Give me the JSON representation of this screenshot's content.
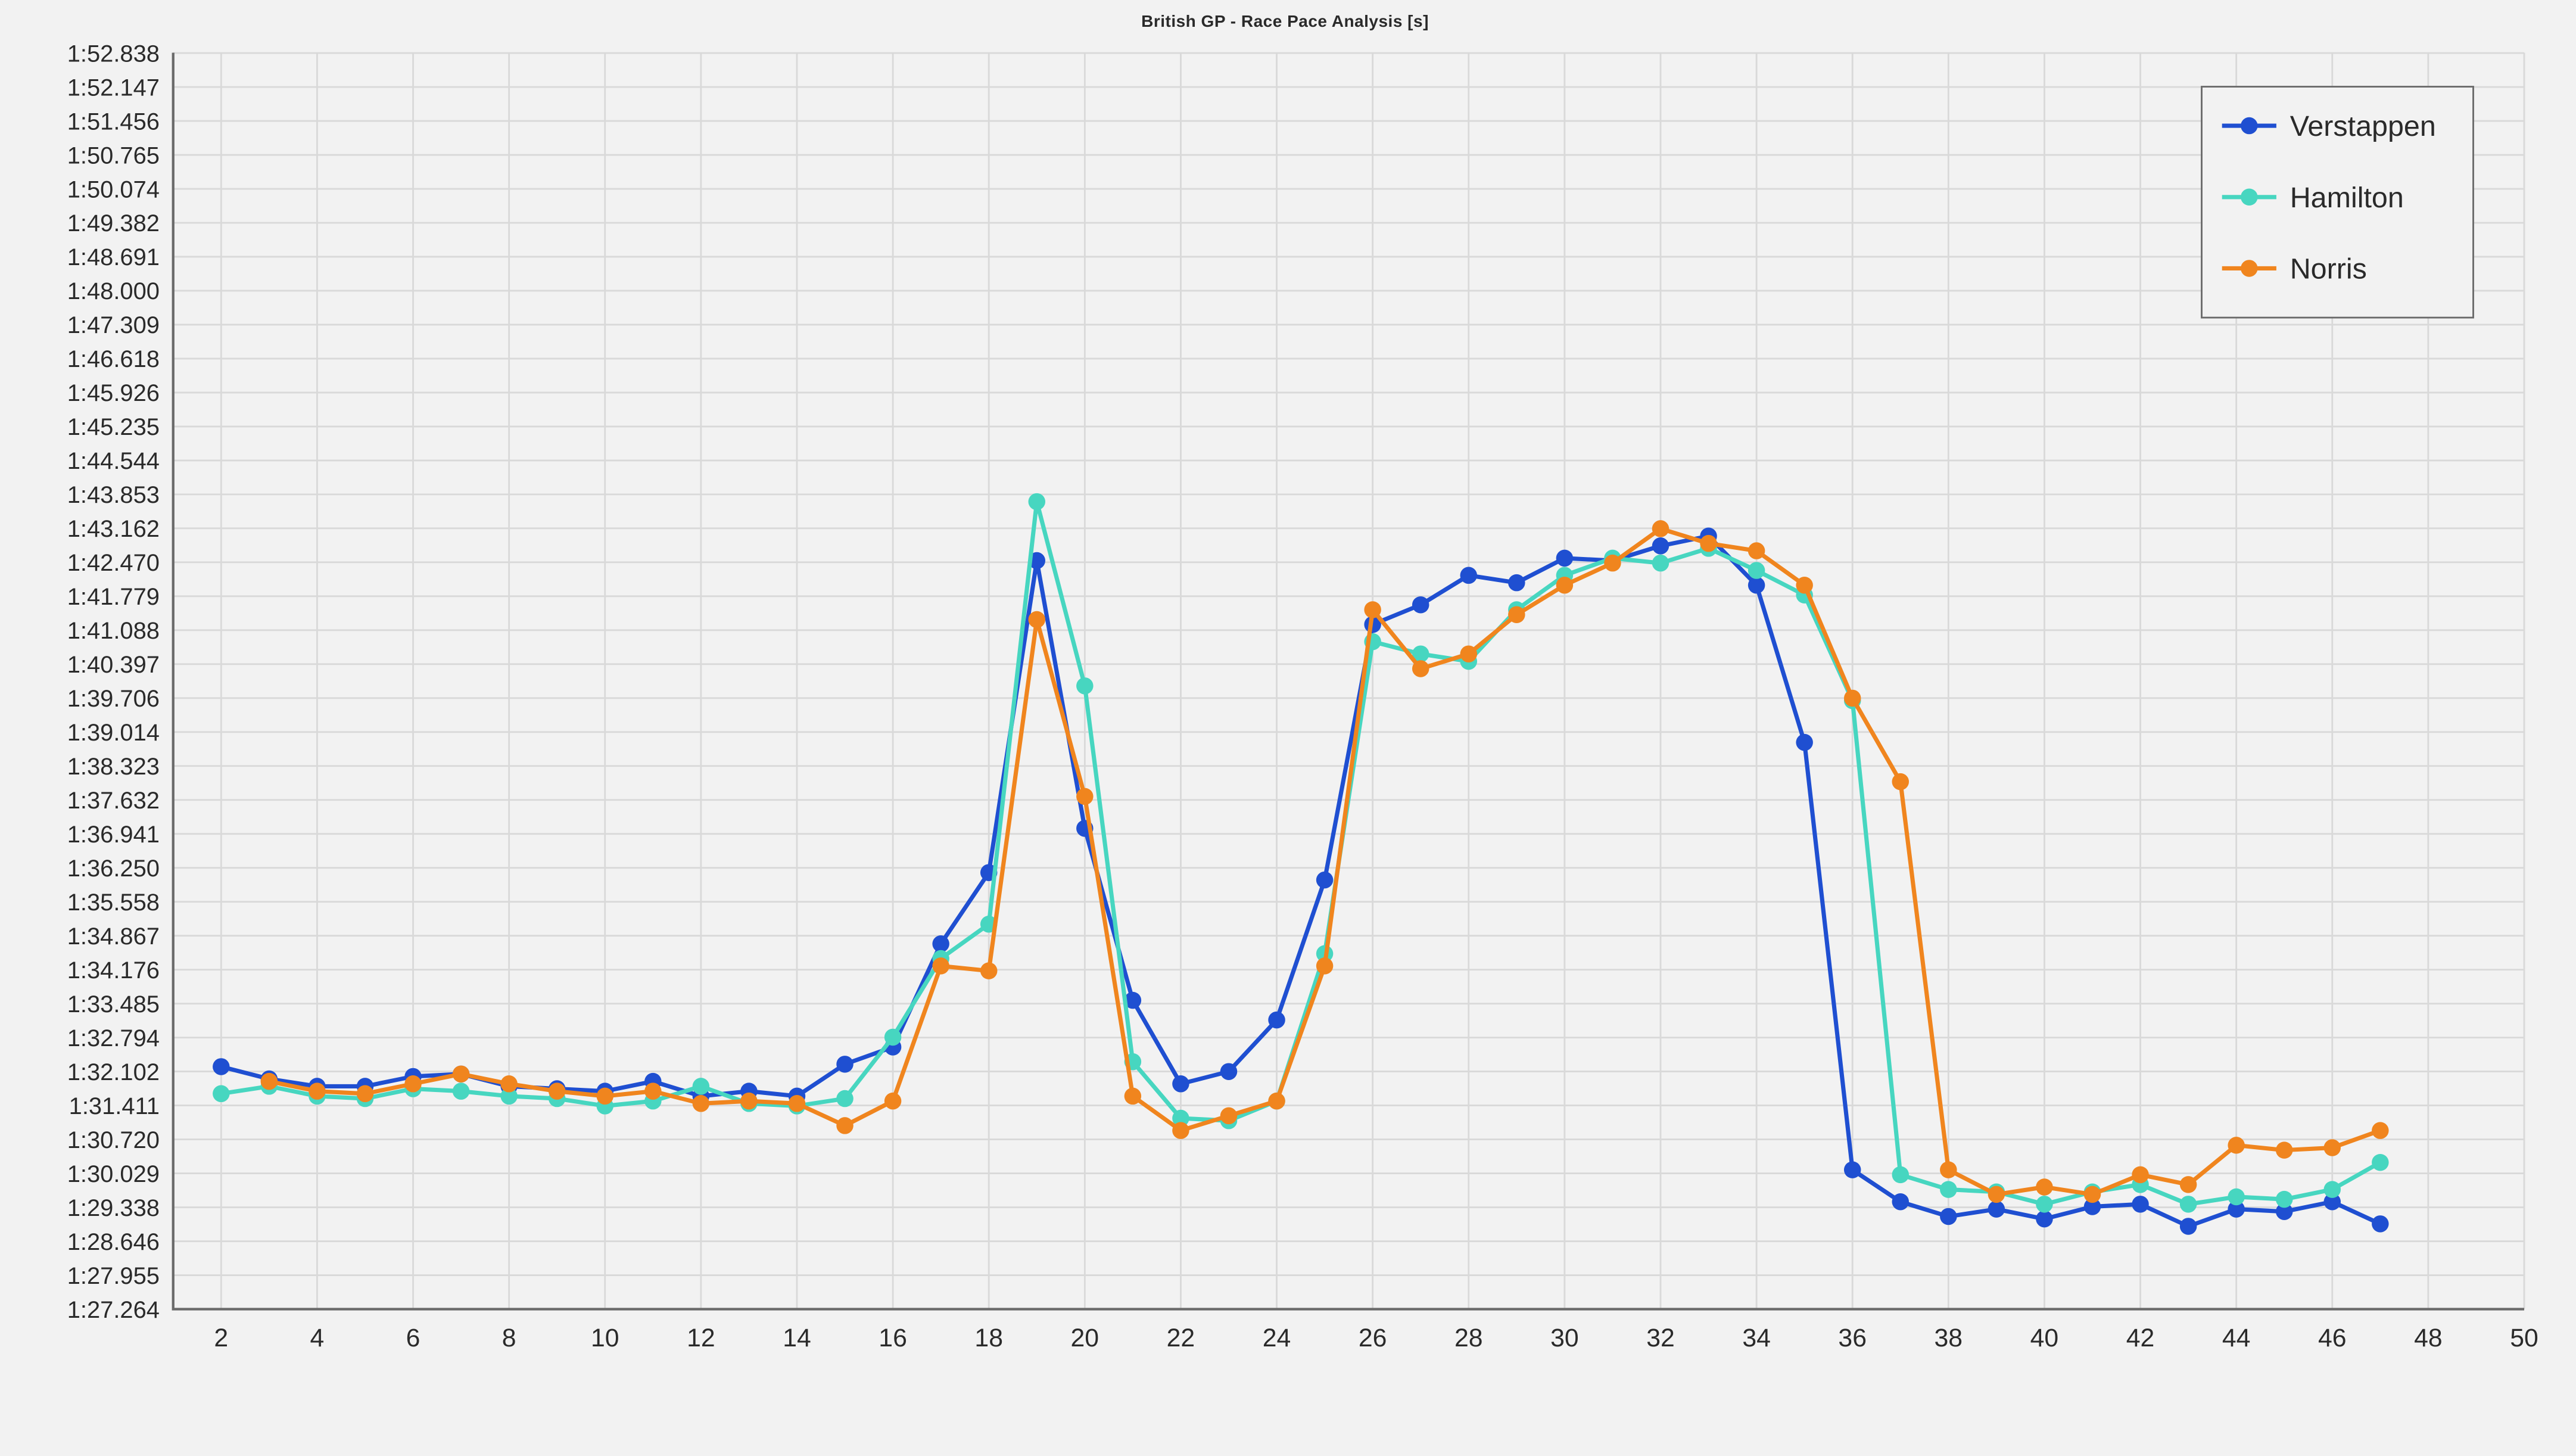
{
  "chart": {
    "type": "line",
    "title": "British GP - Race Pace Analysis [s]",
    "title_fontsize": 28,
    "title_fontweight": 700,
    "title_color": "#2a2a2a",
    "background_color": "#f2f2f2",
    "plot_background_color": "#f2f2f2",
    "grid_color": "#d9d9d9",
    "axis_border_color": "#6a6a6a",
    "x": {
      "min": 1,
      "max": 50,
      "tick_step": 2,
      "tick_start": 2,
      "tick_end": 50,
      "label_fontsize": 15,
      "label_color": "#2a2a2a"
    },
    "y": {
      "min_sec": 87.264,
      "max_sec": 112.838,
      "tick_step_sec": 0.691,
      "tick_labels": [
        "1:27.264",
        "1:27.955",
        "1:28.646",
        "1:29.338",
        "1:30.029",
        "1:30.720",
        "1:31.411",
        "1:32.102",
        "1:32.794",
        "1:33.485",
        "1:34.176",
        "1:34.867",
        "1:35.558",
        "1:36.250",
        "1:36.941",
        "1:37.632",
        "1:38.323",
        "1:39.014",
        "1:39.706",
        "1:40.397",
        "1:41.088",
        "1:41.779",
        "1:42.470",
        "1:43.162",
        "1:43.853",
        "1:44.544",
        "1:45.235",
        "1:45.926",
        "1:46.618",
        "1:47.309",
        "1:48.000",
        "1:48.691",
        "1:49.382",
        "1:50.074",
        "1:50.765",
        "1:51.456",
        "1:52.147",
        "1:52.838"
      ],
      "label_fontsize": 14,
      "label_color": "#2a2a2a"
    },
    "line_width": 2.5,
    "marker_radius": 5,
    "series": [
      {
        "name": "Verstappen",
        "color": "#1f4fd1",
        "x": [
          2,
          3,
          4,
          5,
          6,
          7,
          8,
          9,
          10,
          11,
          12,
          13,
          14,
          15,
          16,
          17,
          18,
          19,
          20,
          21,
          22,
          23,
          24,
          25,
          26,
          27,
          28,
          29,
          30,
          31,
          32,
          33,
          34,
          35,
          36,
          37,
          38,
          39,
          40,
          41,
          42,
          43,
          44,
          45,
          46,
          47
        ],
        "y_sec": [
          92.2,
          91.95,
          91.8,
          91.8,
          92.0,
          92.05,
          91.8,
          91.75,
          91.7,
          91.9,
          91.6,
          91.7,
          91.6,
          92.25,
          92.6,
          94.7,
          96.15,
          102.5,
          97.05,
          93.55,
          91.85,
          92.1,
          93.15,
          96.0,
          101.2,
          101.6,
          102.2,
          102.05,
          102.55,
          102.5,
          102.8,
          103.0,
          102.0,
          98.8,
          90.1,
          89.45,
          89.15,
          89.3,
          89.1,
          89.35,
          89.4,
          88.95,
          89.3,
          89.25,
          89.45,
          89.0
        ],
        "y_labels": [
          "1:32.200",
          "1:31.950",
          "1:31.800",
          "1:31.800",
          "1:32.000",
          "1:32.050",
          "1:31.800",
          "1:31.750",
          "1:31.700",
          "1:31.900",
          "1:31.600",
          "1:31.700",
          "1:31.600",
          "1:32.250",
          "1:32.600",
          "1:34.700",
          "1:36.150",
          "1:42.500",
          "1:37.050",
          "1:33.550",
          "1:31.850",
          "1:32.100",
          "1:33.150",
          "1:36.000",
          "1:41.200",
          "1:41.600",
          "1:42.200",
          "1:42.050",
          "1:42.550",
          "1:42.500",
          "1:42.800",
          "1:43.000",
          "1:42.000",
          "1:38.800",
          "1:30.100",
          "1:29.450",
          "1:29.150",
          "1:29.300",
          "1:29.100",
          "1:29.350",
          "1:29.400",
          "1:28.950",
          "1:29.300",
          "1:29.250",
          "1:29.450",
          "1:29.000"
        ]
      },
      {
        "name": "Hamilton",
        "color": "#47d6c0",
        "x": [
          2,
          3,
          4,
          5,
          6,
          7,
          8,
          9,
          10,
          11,
          12,
          13,
          14,
          15,
          16,
          17,
          18,
          19,
          20,
          21,
          22,
          23,
          24,
          25,
          26,
          27,
          28,
          29,
          30,
          31,
          32,
          33,
          34,
          35,
          36,
          37,
          38,
          39,
          40,
          41,
          42,
          43,
          44,
          45,
          46,
          47
        ],
        "y_sec": [
          91.65,
          91.8,
          91.6,
          91.55,
          91.75,
          91.7,
          91.6,
          91.55,
          91.4,
          91.5,
          91.8,
          91.45,
          91.4,
          91.55,
          92.8,
          94.4,
          95.1,
          103.7,
          99.95,
          92.3,
          91.15,
          91.1,
          91.5,
          94.5,
          100.85,
          100.6,
          100.45,
          101.5,
          102.2,
          102.55,
          102.45,
          102.75,
          102.3,
          101.8,
          99.65,
          90.0,
          89.7,
          89.65,
          89.4,
          89.65,
          89.8,
          89.4,
          89.55,
          89.5,
          89.7,
          90.25
        ],
        "y_labels": [
          "1:31.650",
          "1:31.800",
          "1:31.600",
          "1:31.550",
          "1:31.750",
          "1:31.700",
          "1:31.600",
          "1:31.550",
          "1:31.400",
          "1:31.500",
          "1:31.800",
          "1:31.450",
          "1:31.400",
          "1:31.550",
          "1:32.800",
          "1:34.400",
          "1:35.100",
          "1:43.700",
          "1:39.950",
          "1:32.300",
          "1:31.150",
          "1:31.100",
          "1:31.500",
          "1:34.500",
          "1:40.850",
          "1:40.600",
          "1:40.450",
          "1:41.500",
          "1:42.200",
          "1:42.550",
          "1:42.450",
          "1:42.750",
          "1:42.300",
          "1:41.800",
          "1:39.650",
          "1:30.000",
          "1:29.700",
          "1:29.650",
          "1:29.400",
          "1:29.650",
          "1:29.800",
          "1:29.400",
          "1:29.550",
          "1:29.500",
          "1:29.700",
          "1:30.250"
        ]
      },
      {
        "name": "Norris",
        "color": "#f0851e",
        "x": [
          2,
          3,
          4,
          5,
          6,
          7,
          8,
          9,
          10,
          11,
          12,
          13,
          14,
          15,
          16,
          17,
          18,
          19,
          20,
          21,
          22,
          23,
          24,
          25,
          26,
          27,
          28,
          29,
          30,
          31,
          32,
          33,
          34,
          35,
          36,
          37,
          38,
          39,
          40,
          41,
          42,
          43,
          44,
          45,
          46,
          47
        ],
        "y_sec": [
          null,
          91.9,
          91.7,
          91.65,
          91.85,
          92.05,
          91.85,
          91.7,
          91.6,
          91.7,
          91.45,
          91.5,
          91.45,
          91.0,
          91.5,
          94.25,
          94.15,
          101.3,
          97.7,
          91.6,
          90.9,
          91.2,
          91.5,
          94.25,
          101.5,
          100.3,
          100.6,
          101.4,
          102.0,
          102.45,
          103.15,
          102.85,
          102.7,
          102.0,
          99.7,
          98.0,
          90.1,
          89.6,
          89.75,
          89.6,
          90.0,
          89.8,
          90.6,
          90.5,
          90.55,
          90.9
        ],
        "y_labels": [
          null,
          "1:31.900",
          "1:31.700",
          "1:31.650",
          "1:31.850",
          "1:32.050",
          "1:31.850",
          "1:31.700",
          "1:31.600",
          "1:31.700",
          "1:31.450",
          "1:31.500",
          "1:31.450",
          "1:31.000",
          "1:31.500",
          "1:34.250",
          "1:34.150",
          "1:41.300",
          "1:37.700",
          "1:31.600",
          "1:30.900",
          "1:31.200",
          "1:31.500",
          "1:34.250",
          "1:41.500",
          "1:40.300",
          "1:40.600",
          "1:41.400",
          "1:42.000",
          "1:42.450",
          "1:43.150",
          "1:42.850",
          "1:42.700",
          "1:42.000",
          "1:39.700",
          "1:38.000",
          "1:30.100",
          "1:29.600",
          "1:29.750",
          "1:29.600",
          "1:30.000",
          "1:29.800",
          "1:30.600",
          "1:30.500",
          "1:30.550",
          "1:30.900"
        ]
      }
    ],
    "legend": {
      "position": "top-right",
      "font_size": 17,
      "border_color": "#6a6a6a",
      "background_color": "#f2f2f2"
    }
  }
}
